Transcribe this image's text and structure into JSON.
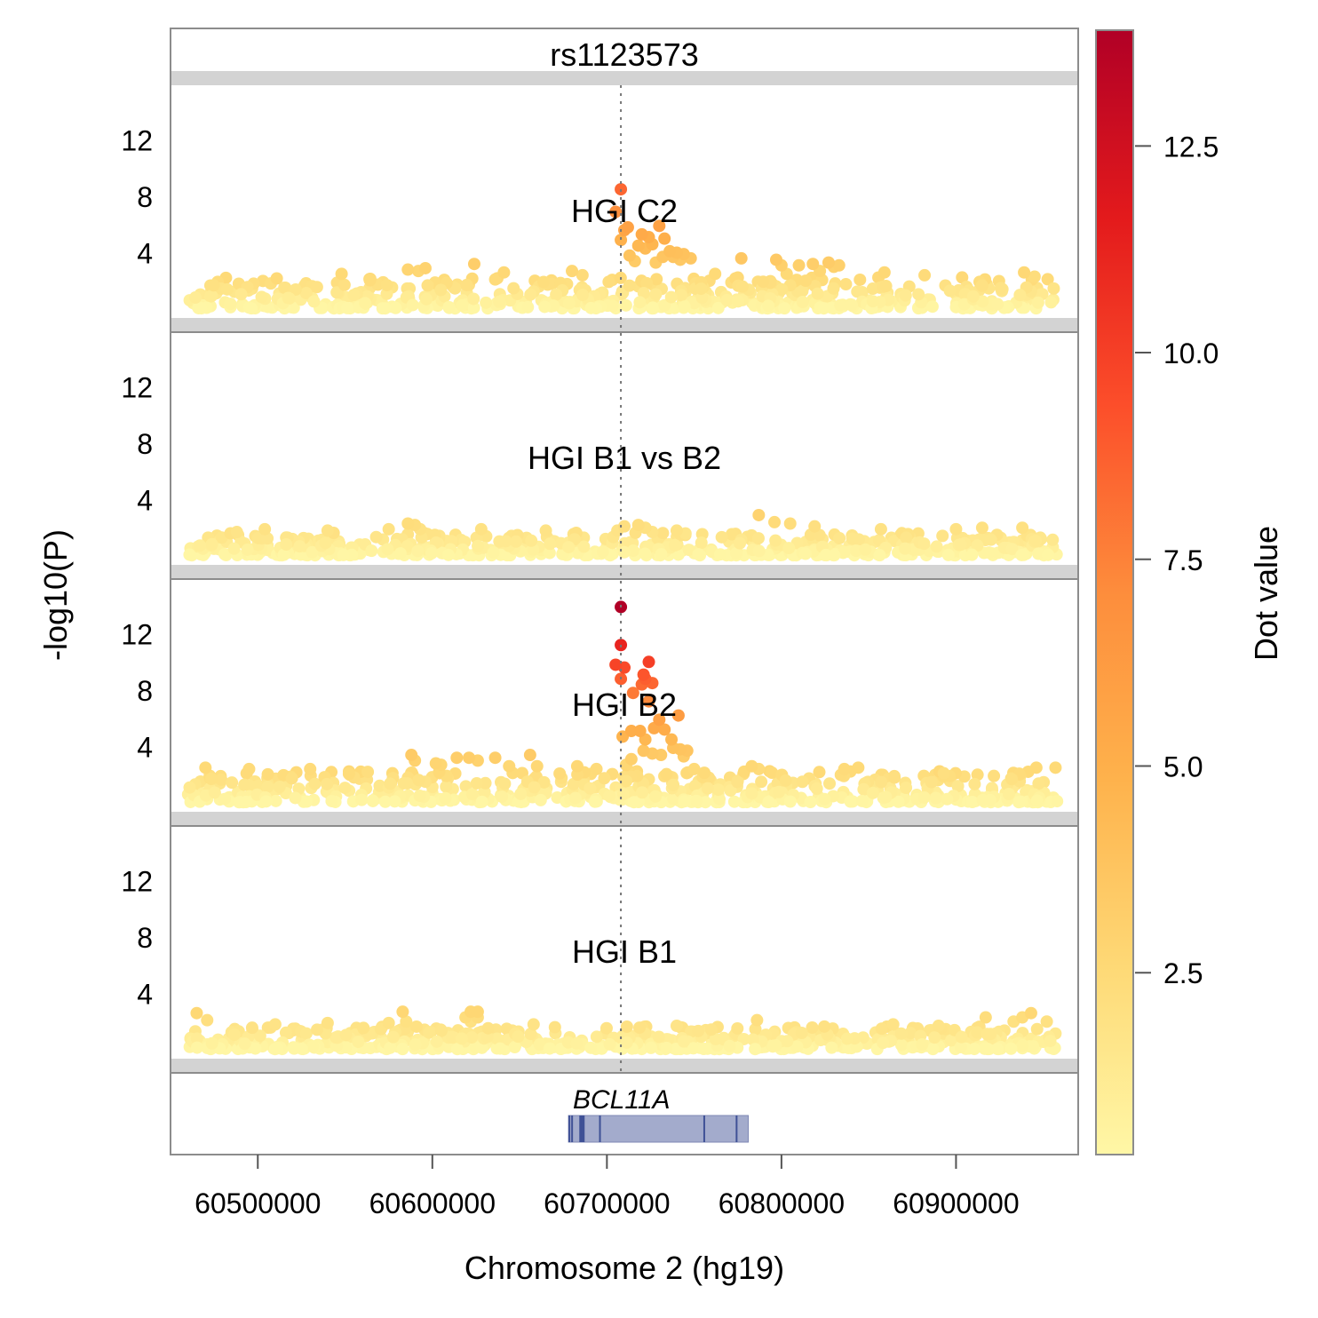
{
  "chart_data": {
    "type": "scatter",
    "title": "rs1123573",
    "xlabel": "Chromosome 2 (hg19)",
    "ylabel": "-log10(P)",
    "x_range": [
      60450000,
      60970000
    ],
    "x_ticks": [
      60500000,
      60600000,
      60700000,
      60800000,
      60900000
    ],
    "x_tick_labels": [
      "60500000",
      "60600000",
      "60700000",
      "60800000",
      "60900000"
    ],
    "y_range": [
      0,
      15.5
    ],
    "y_ticks": [
      4,
      8,
      12
    ],
    "y_tick_labels": [
      "4",
      "8",
      "12"
    ],
    "lead_snp_position": 60708000,
    "colorbar": {
      "title": "Dot value",
      "range": [
        0.3,
        13.9
      ],
      "ticks": [
        2.5,
        5.0,
        7.5,
        10.0,
        12.5
      ],
      "tick_labels": [
        "2.5",
        "5.0",
        "7.5",
        "10.0",
        "12.5"
      ],
      "stops": [
        "#fff7a6",
        "#fed976",
        "#feb24c",
        "#fd8d3c",
        "#fc4e2a",
        "#e31a1c",
        "#b10026"
      ]
    },
    "series": [
      {
        "name": "HGI C2",
        "background_max": 2.2,
        "points": [
          [
            60708000,
            8.5
          ],
          [
            60705000,
            6.9
          ],
          [
            60710000,
            5.6
          ],
          [
            60712000,
            5.8
          ],
          [
            60720000,
            5.3
          ],
          [
            60724000,
            5.1
          ],
          [
            60730000,
            5.9
          ],
          [
            60733000,
            5.0
          ],
          [
            60708000,
            4.9
          ],
          [
            60718000,
            4.5
          ],
          [
            60722000,
            4.3
          ],
          [
            60726000,
            4.6
          ],
          [
            60736000,
            4.1
          ],
          [
            60740000,
            4.0
          ],
          [
            60744000,
            3.9
          ],
          [
            60738000,
            3.7
          ],
          [
            60748000,
            3.6
          ],
          [
            60713000,
            3.8
          ],
          [
            60716000,
            3.4
          ],
          [
            60728000,
            3.3
          ],
          [
            60732000,
            3.7
          ],
          [
            60742000,
            3.5
          ],
          [
            60624000,
            3.2
          ],
          [
            60762000,
            2.5
          ],
          [
            60777000,
            3.6
          ],
          [
            60797000,
            3.5
          ],
          [
            60800000,
            3.1
          ],
          [
            60803000,
            2.5
          ],
          [
            60810000,
            3.1
          ],
          [
            60818000,
            3.2
          ],
          [
            60822000,
            2.7
          ],
          [
            60827000,
            3.3
          ],
          [
            60830000,
            3.0
          ],
          [
            60833000,
            3.1
          ],
          [
            60586000,
            2.8
          ],
          [
            60592000,
            2.7
          ],
          [
            60596000,
            2.9
          ],
          [
            60548000,
            2.5
          ],
          [
            60641000,
            2.6
          ],
          [
            60680000,
            2.7
          ],
          [
            60686000,
            2.4
          ],
          [
            60859000,
            2.6
          ],
          [
            60882000,
            2.4
          ],
          [
            60939000,
            2.6
          ],
          [
            60945000,
            2.3
          ]
        ]
      },
      {
        "name": "HGI B1 vs B2",
        "background_max": 1.6,
        "points": [
          [
            60586000,
            2.3
          ],
          [
            60590000,
            2.2
          ],
          [
            60593000,
            1.9
          ],
          [
            60710000,
            2.1
          ],
          [
            60706000,
            1.8
          ],
          [
            60718000,
            2.2
          ],
          [
            60722000,
            2.0
          ],
          [
            60726000,
            1.7
          ],
          [
            60740000,
            1.8
          ],
          [
            60745000,
            1.6
          ],
          [
            60787000,
            2.9
          ],
          [
            60796000,
            2.4
          ],
          [
            60805000,
            2.3
          ],
          [
            60819000,
            2.1
          ],
          [
            60665000,
            1.8
          ],
          [
            60540000,
            1.8
          ],
          [
            60575000,
            1.9
          ],
          [
            60628000,
            1.9
          ],
          [
            60857000,
            1.9
          ],
          [
            60900000,
            1.9
          ],
          [
            60915000,
            2.0
          ],
          [
            60938000,
            2.0
          ],
          [
            60488000,
            1.7
          ],
          [
            60504000,
            1.9
          ]
        ]
      },
      {
        "name": "HGI B2",
        "background_max": 2.2,
        "points": [
          [
            60708000,
            13.9
          ],
          [
            60708000,
            11.2
          ],
          [
            60705000,
            9.8
          ],
          [
            60710000,
            9.6
          ],
          [
            60724000,
            10.0
          ],
          [
            60721000,
            9.1
          ],
          [
            60722000,
            8.8
          ],
          [
            60708000,
            8.8
          ],
          [
            60720000,
            8.4
          ],
          [
            60726000,
            8.5
          ],
          [
            60715000,
            7.8
          ],
          [
            60724000,
            7.2
          ],
          [
            60741000,
            6.2
          ],
          [
            60730000,
            5.9
          ],
          [
            60727000,
            5.3
          ],
          [
            60714000,
            5.1
          ],
          [
            60719000,
            5.1
          ],
          [
            60733000,
            5.2
          ],
          [
            60709000,
            4.7
          ],
          [
            60722000,
            4.5
          ],
          [
            60737000,
            4.5
          ],
          [
            60738000,
            3.9
          ],
          [
            60742000,
            3.8
          ],
          [
            60746000,
            3.7
          ],
          [
            60744000,
            3.3
          ],
          [
            60726000,
            3.5
          ],
          [
            60721000,
            3.7
          ],
          [
            60714000,
            3.1
          ],
          [
            60711000,
            2.7
          ],
          [
            60731000,
            3.4
          ],
          [
            60750000,
            2.4
          ],
          [
            60588000,
            3.4
          ],
          [
            60590000,
            3.0
          ],
          [
            60605000,
            2.7
          ],
          [
            60614000,
            3.2
          ],
          [
            60621000,
            3.2
          ],
          [
            60626000,
            3.0
          ],
          [
            60636000,
            3.2
          ],
          [
            60656000,
            3.4
          ],
          [
            60602000,
            2.8
          ],
          [
            60644000,
            2.6
          ],
          [
            60660000,
            2.6
          ],
          [
            60683000,
            2.6
          ],
          [
            60694000,
            2.4
          ],
          [
            60783000,
            2.6
          ],
          [
            60787000,
            2.4
          ],
          [
            60836000,
            2.4
          ],
          [
            60844000,
            2.5
          ],
          [
            60893000,
            2.1
          ],
          [
            60946000,
            2.5
          ],
          [
            60957000,
            2.5
          ],
          [
            60470000,
            2.5
          ],
          [
            60495000,
            2.4
          ],
          [
            60530000,
            2.4
          ],
          [
            60563000,
            2.2
          ]
        ]
      },
      {
        "name": "HGI B1",
        "background_max": 1.6,
        "points": [
          [
            60465000,
            2.6
          ],
          [
            60471000,
            2.1
          ],
          [
            60583000,
            2.7
          ],
          [
            60585000,
            2.0
          ],
          [
            60622000,
            2.7
          ],
          [
            60626000,
            2.7
          ],
          [
            60619000,
            2.3
          ],
          [
            60626000,
            2.3
          ],
          [
            60622000,
            2.0
          ],
          [
            60786000,
            2.1
          ],
          [
            60917000,
            2.3
          ],
          [
            60933000,
            2.0
          ],
          [
            60938000,
            2.3
          ],
          [
            60943000,
            2.6
          ],
          [
            60952000,
            2.0
          ],
          [
            60540000,
            1.9
          ],
          [
            60658000,
            1.8
          ],
          [
            60890000,
            1.7
          ],
          [
            60864000,
            1.8
          ],
          [
            60510000,
            1.8
          ],
          [
            60575000,
            1.9
          ],
          [
            60740000,
            1.7
          ]
        ]
      }
    ],
    "genes": [
      {
        "name": "BCL11A",
        "start": 60678000,
        "end": 60781000
      }
    ]
  }
}
